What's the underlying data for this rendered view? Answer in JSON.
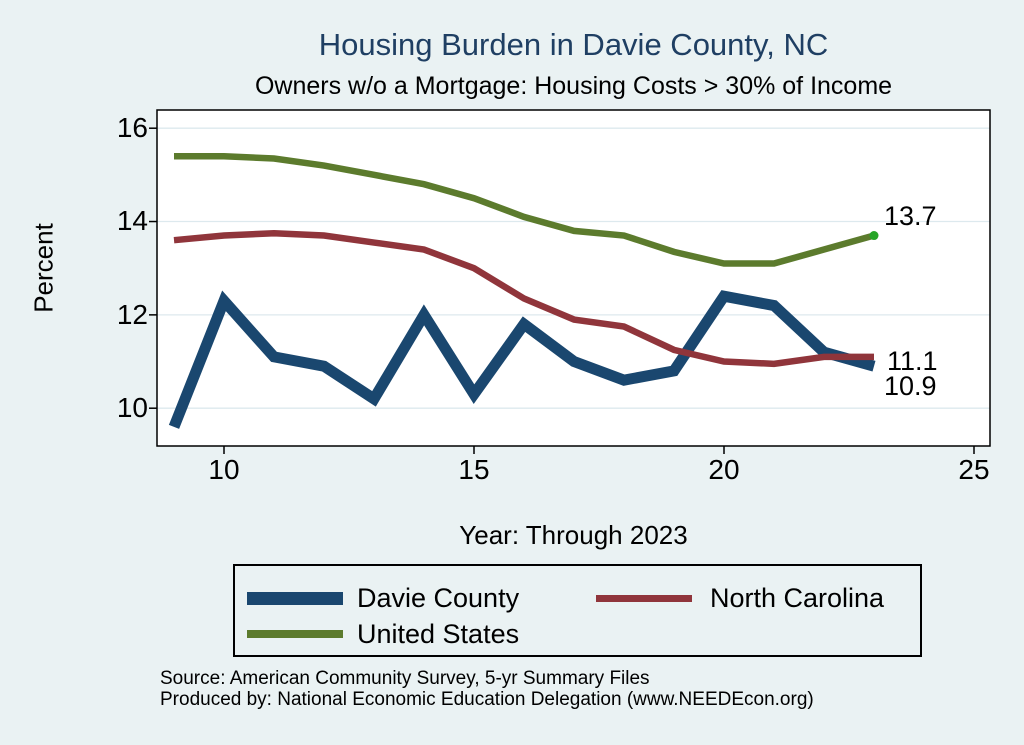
{
  "page": {
    "title": "Housing Burden in Davie County, NC",
    "subtitle": "Owners w/o a Mortgage: Housing Costs > 30% of Income",
    "source_line1": "Source: American Community Survey, 5-yr Summary Files",
    "source_line2": "Produced by: National Economic Education Delegation (www.NEEDEcon.org)"
  },
  "colors": {
    "background": "#eaf2f3",
    "plot_background": "#ffffff",
    "gridline": "#dde9ee",
    "axis": "#000000",
    "title": "#1f3f63",
    "navy": "#1a476f",
    "maroon": "#90353b",
    "olive": "#5c7b2d",
    "end_marker_green": "#26a426"
  },
  "chart_data": {
    "type": "line",
    "title": "Housing Burden in Davie County, NC",
    "subtitle": "Owners w/o a Mortgage: Housing Costs > 30% of Income",
    "xlabel": "Year: Through 2023",
    "ylabel": "Percent",
    "x": [
      9,
      10,
      11,
      12,
      13,
      14,
      15,
      16,
      17,
      18,
      19,
      20,
      21,
      22,
      23
    ],
    "xlim": [
      8.66,
      25.32
    ],
    "ylim": [
      9.19,
      16.39
    ],
    "xticks": [
      "10",
      "15",
      "20",
      "25"
    ],
    "xtick_values": [
      10,
      15,
      20,
      25
    ],
    "yticks": [
      "16",
      "14",
      "12",
      "10"
    ],
    "ytick_values": [
      16,
      14,
      12,
      10
    ],
    "grid": true,
    "legend_position": "bottom",
    "series": [
      {
        "name": "Davie County",
        "color": "#1a476f",
        "width": 11,
        "values": [
          9.6,
          12.3,
          11.1,
          10.9,
          10.2,
          12.0,
          10.3,
          11.8,
          11.0,
          10.6,
          10.8,
          12.4,
          12.2,
          11.2,
          10.9
        ],
        "end_label": "10.9"
      },
      {
        "name": "North Carolina",
        "color": "#90353b",
        "width": 6.5,
        "values": [
          13.6,
          13.7,
          13.75,
          13.7,
          13.55,
          13.4,
          13.0,
          12.35,
          11.9,
          11.75,
          11.25,
          11.0,
          10.95,
          11.1,
          11.1
        ],
        "end_label": "11.1"
      },
      {
        "name": "United States",
        "color": "#5c7b2d",
        "width": 6.5,
        "values": [
          15.4,
          15.4,
          15.35,
          15.2,
          15.0,
          14.8,
          14.5,
          14.1,
          13.8,
          13.7,
          13.35,
          13.1,
          13.1,
          13.4,
          13.7
        ],
        "end_label": "13.7",
        "end_marker_color": "#26a426"
      }
    ]
  }
}
